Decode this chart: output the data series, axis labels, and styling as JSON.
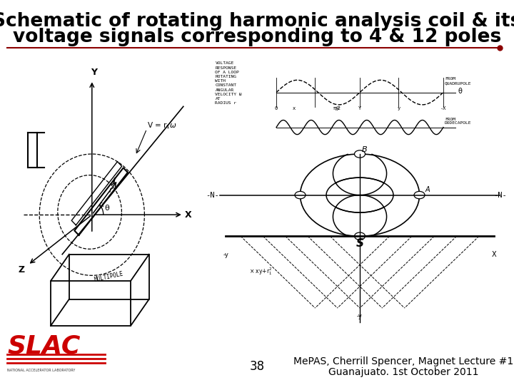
{
  "title_line1": "Schematic of rotating harmonic analysis coil & its",
  "title_line2": "voltage signals corresponding to 4 & 12 poles",
  "title_fontsize": 19,
  "title_color": "#000000",
  "bg_color": "#ffffff",
  "separator_color": "#8B0000",
  "footer_page": "38",
  "footer_citation": "MePAS, Cherrill Spencer, Magnet Lecture #1",
  "footer_citation2": "Guanajuato. 1st October 2011",
  "footer_fontsize": 10,
  "slac_red": "#cc0000"
}
